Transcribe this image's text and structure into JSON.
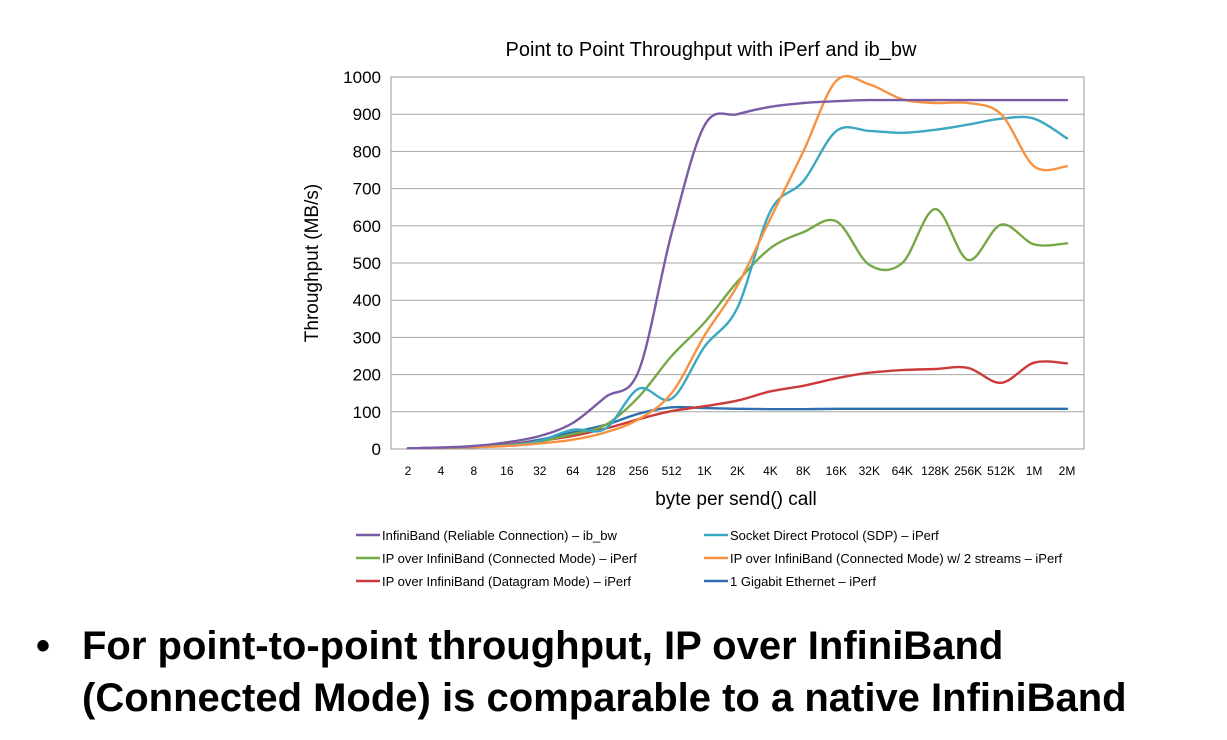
{
  "chart_data": {
    "type": "line",
    "title": "Point to Point Throughput with iPerf and ib_bw",
    "xlabel": "byte per send() call",
    "ylabel": "Throughput (MB/s)",
    "ylim": [
      0,
      1000
    ],
    "yticks": [
      0,
      100,
      200,
      300,
      400,
      500,
      600,
      700,
      800,
      900,
      1000
    ],
    "grid": true,
    "legend_position": "bottom",
    "categories": [
      "2",
      "4",
      "8",
      "16",
      "32",
      "64",
      "128",
      "256",
      "512",
      "1K",
      "2K",
      "4K",
      "8K",
      "16K",
      "32K",
      "64K",
      "128K",
      "256K",
      "512K",
      "1M",
      "2M"
    ],
    "series": [
      {
        "name": "InfiniBand (Reliable Connection) – ib_bw",
        "color": "#7a5ba5",
        "values": [
          2,
          4,
          8,
          18,
          35,
          70,
          140,
          210,
          580,
          870,
          900,
          920,
          930,
          935,
          938,
          938,
          938,
          938,
          938,
          938,
          938
        ]
      },
      {
        "name": "Socket Direct Protocol (SDP) – iPerf",
        "color": "#3aa8c1",
        "values": [
          2,
          3,
          5,
          10,
          22,
          52,
          55,
          162,
          135,
          275,
          380,
          640,
          720,
          855,
          855,
          850,
          858,
          872,
          888,
          888,
          835
        ]
      },
      {
        "name": "IP over InfiniBand (Connected Mode) – iPerf",
        "color": "#76a845",
        "values": [
          2,
          3,
          5,
          10,
          20,
          40,
          65,
          140,
          250,
          340,
          450,
          540,
          583,
          612,
          495,
          500,
          645,
          508,
          603,
          550,
          553
        ]
      },
      {
        "name": "IP over InfiniBand (Connected Mode) w/ 2 streams – iPerf",
        "color": "#f59342",
        "values": [
          2,
          3,
          5,
          8,
          15,
          25,
          45,
          80,
          150,
          305,
          440,
          620,
          800,
          990,
          980,
          940,
          930,
          930,
          900,
          760,
          760
        ]
      },
      {
        "name": "IP over InfiniBand (Datagram Mode) – iPerf",
        "color": "#cc3a3a",
        "values": [
          2,
          3,
          6,
          12,
          22,
          35,
          55,
          80,
          102,
          115,
          130,
          155,
          170,
          190,
          205,
          212,
          215,
          218,
          178,
          232,
          230
        ]
      },
      {
        "name": "1 Gigabit Ethernet – iPerf",
        "color": "#2f6fae",
        "values": [
          2,
          3,
          6,
          12,
          25,
          45,
          65,
          95,
          112,
          110,
          108,
          107,
          107,
          108,
          108,
          108,
          108,
          108,
          108,
          108,
          108
        ]
      }
    ]
  },
  "bullet": {
    "symbol": "•",
    "line1": "For point-to-point throughput, IP over InfiniBand",
    "line2": "(Connected Mode) is comparable to a native InfiniBand"
  }
}
